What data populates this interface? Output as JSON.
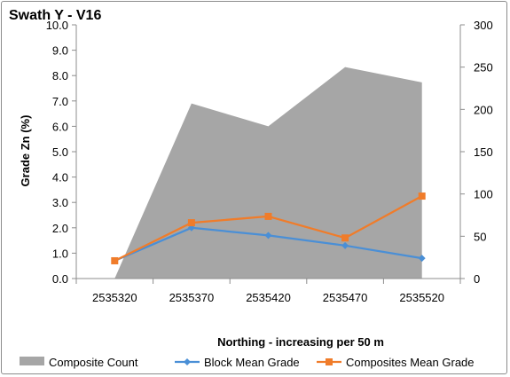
{
  "chart_data": {
    "type": "line",
    "title": "Swath Y - V16",
    "xlabel": "Northing - increasing per 50 m",
    "ylabel": "Grade Zn (%)",
    "categories": [
      "2535320",
      "2535370",
      "2535420",
      "2535470",
      "2535520"
    ],
    "ylim": [
      0,
      10
    ],
    "y_ticks": [
      "0.0",
      "1.0",
      "2.0",
      "3.0",
      "4.0",
      "5.0",
      "6.0",
      "7.0",
      "8.0",
      "9.0",
      "10.0"
    ],
    "y2lim": [
      0,
      300
    ],
    "y2_ticks": [
      "0",
      "50",
      "100",
      "150",
      "200",
      "250",
      "300"
    ],
    "grid": false,
    "legend_position": "bottom",
    "series": [
      {
        "name": "Composite Count",
        "type": "area",
        "axis": "secondary",
        "color": "#a6a6a6",
        "values": [
          0,
          207,
          180,
          250,
          232
        ]
      },
      {
        "name": "Block Mean Grade",
        "type": "line",
        "axis": "primary",
        "color": "#4a8fd6",
        "marker": "diamond",
        "values": [
          0.7,
          2.0,
          1.7,
          1.3,
          0.8
        ]
      },
      {
        "name": "Composites Mean Grade",
        "type": "line",
        "axis": "primary",
        "color": "#f07c2a",
        "marker": "square",
        "values": [
          0.7,
          2.2,
          2.45,
          1.6,
          3.25
        ]
      }
    ]
  }
}
